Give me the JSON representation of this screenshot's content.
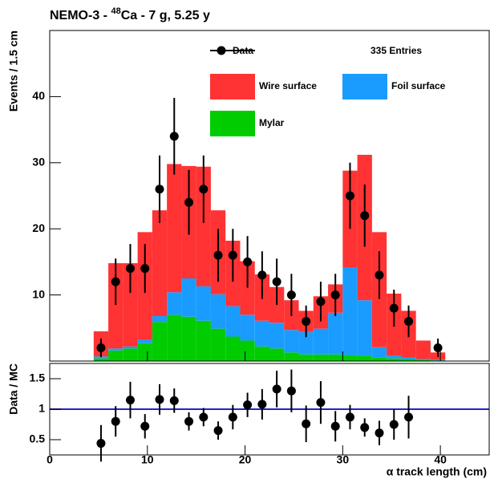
{
  "chart_data": [
    {
      "type": "histogram",
      "title_parts": [
        "NEMO-3 - ",
        "48",
        "Ca - 7 g, 5.25 y"
      ],
      "ylabel": "Events / 1.5 cm",
      "bins": [
        4.5,
        6,
        7.5,
        9,
        10.5,
        12,
        13.5,
        15,
        16.5,
        18,
        19.5,
        21,
        22.5,
        24,
        25.5,
        27,
        28.5,
        30,
        31.5,
        33,
        34.5,
        36,
        37.5,
        39,
        40.5
      ],
      "series": [
        {
          "name": "Mylar",
          "color": "#00cc00",
          "values": [
            0.4,
            1.6,
            1.9,
            2.7,
            5.9,
            7.0,
            6.7,
            6.1,
            4.9,
            3.7,
            3.1,
            2.2,
            1.9,
            1.3,
            1.0,
            1.0,
            1.0,
            0.9,
            0.8,
            0.5,
            0.4,
            0.3,
            0.2,
            0.1
          ]
        },
        {
          "name": "Foil surface",
          "color": "#1a9cff",
          "values": [
            0.3,
            0.3,
            0.3,
            0.5,
            0.9,
            3.4,
            5.8,
            5.2,
            5.2,
            4.6,
            3.9,
            3.9,
            3.9,
            3.4,
            3.4,
            3.9,
            6.3,
            13.3,
            8.4,
            1.6,
            0.4,
            0.2,
            0.1,
            0.1
          ]
        },
        {
          "name": "Wire surface",
          "color": "#ff3333",
          "values": [
            3.8,
            12.9,
            12.6,
            16.3,
            16.0,
            19.4,
            17.0,
            18.1,
            12.7,
            9.9,
            8.1,
            7.0,
            5.4,
            4.5,
            3.2,
            4.9,
            4.3,
            14.6,
            22.0,
            17.4,
            9.4,
            7.1,
            2.8,
            1.1
          ]
        }
      ],
      "data_points": {
        "name": "Data",
        "color": "#000000",
        "x": [
          5.25,
          6.75,
          8.25,
          9.75,
          11.25,
          12.75,
          14.25,
          15.75,
          17.25,
          18.75,
          20.25,
          21.75,
          23.25,
          24.75,
          26.25,
          27.75,
          29.25,
          30.75,
          32.25,
          33.75,
          35.25,
          36.75,
          38.25,
          39.75
        ],
        "values": [
          2,
          12,
          14,
          14,
          26,
          34,
          24,
          26,
          16,
          16,
          15,
          13,
          12,
          10,
          6,
          9,
          10,
          25,
          22,
          13,
          8,
          6,
          null,
          2
        ],
        "errors": [
          1.4,
          3.5,
          3.7,
          3.7,
          5.1,
          5.8,
          4.9,
          5.1,
          4.0,
          4.0,
          3.9,
          3.6,
          3.5,
          3.2,
          2.4,
          3.0,
          3.2,
          5.0,
          4.7,
          3.6,
          2.8,
          2.4,
          null,
          1.4
        ]
      },
      "entries_label": "335 Entries",
      "xlim": [
        0,
        45
      ],
      "xticks": [
        0,
        10,
        20,
        30,
        40
      ],
      "ylim": [
        0,
        50
      ],
      "yticks": [
        10,
        20,
        30,
        40
      ]
    },
    {
      "type": "ratio",
      "ylabel": "Data / MC",
      "xlabel": "α track length (cm)",
      "x": [
        5.25,
        6.75,
        8.25,
        9.75,
        11.25,
        12.75,
        14.25,
        15.75,
        17.25,
        18.75,
        20.25,
        21.75,
        23.25,
        24.75,
        26.25,
        27.75,
        29.25,
        30.75,
        32.25,
        33.75,
        35.25,
        36.75,
        38.25,
        39.75
      ],
      "values": [
        0.44,
        0.8,
        1.15,
        0.72,
        1.16,
        1.14,
        0.8,
        0.87,
        0.65,
        0.87,
        1.07,
        1.08,
        1.33,
        1.3,
        0.76,
        1.11,
        0.72,
        0.87,
        0.7,
        0.61,
        0.75,
        0.87,
        null,
        null
      ],
      "errors": [
        0.3,
        0.25,
        0.3,
        0.2,
        0.25,
        0.2,
        0.15,
        0.15,
        0.15,
        0.2,
        0.2,
        0.25,
        0.3,
        0.35,
        0.3,
        0.35,
        0.25,
        0.2,
        0.15,
        0.2,
        0.25,
        0.35,
        null,
        null
      ],
      "color": "#000000",
      "reference_line": 1,
      "reference_color": "#2222cc",
      "xlim": [
        0,
        45
      ],
      "xticks": [
        0,
        10,
        20,
        30,
        40
      ],
      "ylim": [
        0.25,
        1.75
      ],
      "yticks": [
        0.5,
        1,
        1.5
      ]
    }
  ]
}
